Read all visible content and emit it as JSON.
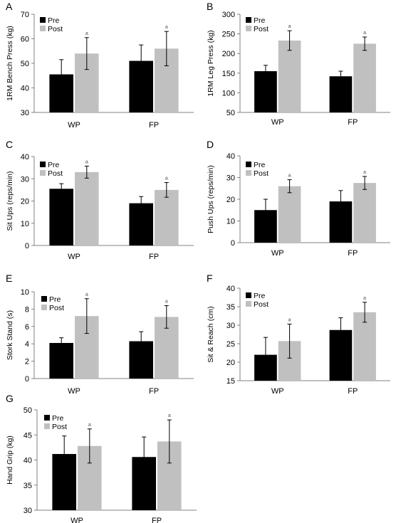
{
  "colors": {
    "pre": "#000000",
    "post": "#c0c0c0",
    "axis": "#808080",
    "text": "#000000"
  },
  "legend": {
    "pre": "Pre",
    "post": "Post"
  },
  "chart_data": [
    {
      "panel": "A",
      "type": "bar",
      "ylabel": "1RM Bench Press (kg)",
      "ylim": [
        30,
        70
      ],
      "yticks": [
        30,
        40,
        50,
        60,
        70
      ],
      "categories": [
        "WP",
        "FP"
      ],
      "series": [
        {
          "name": "Pre",
          "values": [
            45.5,
            51.0
          ],
          "errors": [
            6.0,
            6.5
          ]
        },
        {
          "name": "Post",
          "values": [
            54.0,
            56.0
          ],
          "errors": [
            6.5,
            7.0
          ]
        }
      ],
      "annotations": [
        {
          "category": "WP",
          "series": "Post",
          "text": "a"
        },
        {
          "category": "FP",
          "series": "Post",
          "text": "a"
        }
      ],
      "legend": "top-left",
      "grid": false
    },
    {
      "panel": "B",
      "type": "bar",
      "ylabel": "1RM Leg Press (kg)",
      "ylim": [
        50,
        300
      ],
      "yticks": [
        50,
        100,
        150,
        200,
        250,
        300
      ],
      "categories": [
        "WP",
        "FP"
      ],
      "series": [
        {
          "name": "Pre",
          "values": [
            155,
            142
          ],
          "errors": [
            15,
            13
          ]
        },
        {
          "name": "Post",
          "values": [
            233,
            225
          ],
          "errors": [
            25,
            17
          ]
        }
      ],
      "annotations": [
        {
          "category": "WP",
          "series": "Post",
          "text": "a"
        },
        {
          "category": "FP",
          "series": "Post",
          "text": "a"
        }
      ],
      "legend": "top-left",
      "grid": false
    },
    {
      "panel": "C",
      "type": "bar",
      "ylabel": "Sit Ups (reps/min)",
      "ylim": [
        0,
        40
      ],
      "yticks": [
        0,
        10,
        20,
        30,
        40
      ],
      "categories": [
        "WP",
        "FP"
      ],
      "series": [
        {
          "name": "Pre",
          "values": [
            25.5,
            19.0
          ],
          "errors": [
            2.3,
            3.0
          ]
        },
        {
          "name": "Post",
          "values": [
            33.0,
            25.0
          ],
          "errors": [
            2.7,
            3.3
          ]
        }
      ],
      "annotations": [
        {
          "category": "WP",
          "series": "Post",
          "text": "a"
        },
        {
          "category": "FP",
          "series": "Post",
          "text": "a"
        }
      ],
      "legend": "top-left",
      "grid": false
    },
    {
      "panel": "D",
      "type": "bar",
      "ylabel": "Push Ups (reps/min)",
      "ylim": [
        0,
        40
      ],
      "yticks": [
        0,
        10,
        20,
        30,
        40
      ],
      "categories": [
        "WP",
        "FP"
      ],
      "series": [
        {
          "name": "Pre",
          "values": [
            15.0,
            19.0
          ],
          "errors": [
            5.0,
            5.0
          ]
        },
        {
          "name": "Post",
          "values": [
            26.0,
            27.5
          ],
          "errors": [
            3.0,
            3.0
          ]
        }
      ],
      "annotations": [
        {
          "category": "WP",
          "series": "Post",
          "text": "a"
        },
        {
          "category": "FP",
          "series": "Post",
          "text": "a"
        }
      ],
      "legend": "top-left",
      "grid": false
    },
    {
      "panel": "E",
      "type": "bar",
      "ylabel": "Stork Stand (s)",
      "ylim": [
        0,
        10
      ],
      "yticks": [
        0,
        2,
        4,
        6,
        8,
        10
      ],
      "categories": [
        "WP",
        "FP"
      ],
      "series": [
        {
          "name": "Pre",
          "values": [
            4.1,
            4.3
          ],
          "errors": [
            0.6,
            1.1
          ]
        },
        {
          "name": "Post",
          "values": [
            7.2,
            7.1
          ],
          "errors": [
            2.0,
            1.3
          ]
        }
      ],
      "annotations": [
        {
          "category": "WP",
          "series": "Post",
          "text": "a"
        },
        {
          "category": "FP",
          "series": "Post",
          "text": "a"
        }
      ],
      "legend": "top-left",
      "grid": false
    },
    {
      "panel": "F",
      "type": "bar",
      "ylabel": "Sit & Reach (cm)",
      "ylim": [
        15,
        40
      ],
      "yticks": [
        15,
        20,
        25,
        30,
        35,
        40
      ],
      "categories": [
        "WP",
        "FP"
      ],
      "series": [
        {
          "name": "Pre",
          "values": [
            22.0,
            28.7
          ],
          "errors": [
            4.7,
            3.3
          ]
        },
        {
          "name": "Post",
          "values": [
            25.7,
            33.5
          ],
          "errors": [
            4.6,
            2.7
          ]
        }
      ],
      "annotations": [
        {
          "category": "WP",
          "series": "Post",
          "text": "a"
        },
        {
          "category": "FP",
          "series": "Post",
          "text": "a"
        }
      ],
      "legend": "top-left",
      "grid": false
    },
    {
      "panel": "G",
      "type": "bar",
      "ylabel": "Hand Grip (kg)",
      "ylim": [
        30,
        50
      ],
      "yticks": [
        30,
        35,
        40,
        45,
        50
      ],
      "categories": [
        "WP",
        "FP"
      ],
      "series": [
        {
          "name": "Pre",
          "values": [
            41.2,
            40.6
          ],
          "errors": [
            3.6,
            4.0
          ]
        },
        {
          "name": "Post",
          "values": [
            42.8,
            43.7
          ],
          "errors": [
            3.4,
            4.3
          ]
        }
      ],
      "annotations": [
        {
          "category": "WP",
          "series": "Post",
          "text": "a"
        },
        {
          "category": "FP",
          "series": "Post",
          "text": "a"
        }
      ],
      "legend": "top-left",
      "grid": false
    }
  ]
}
